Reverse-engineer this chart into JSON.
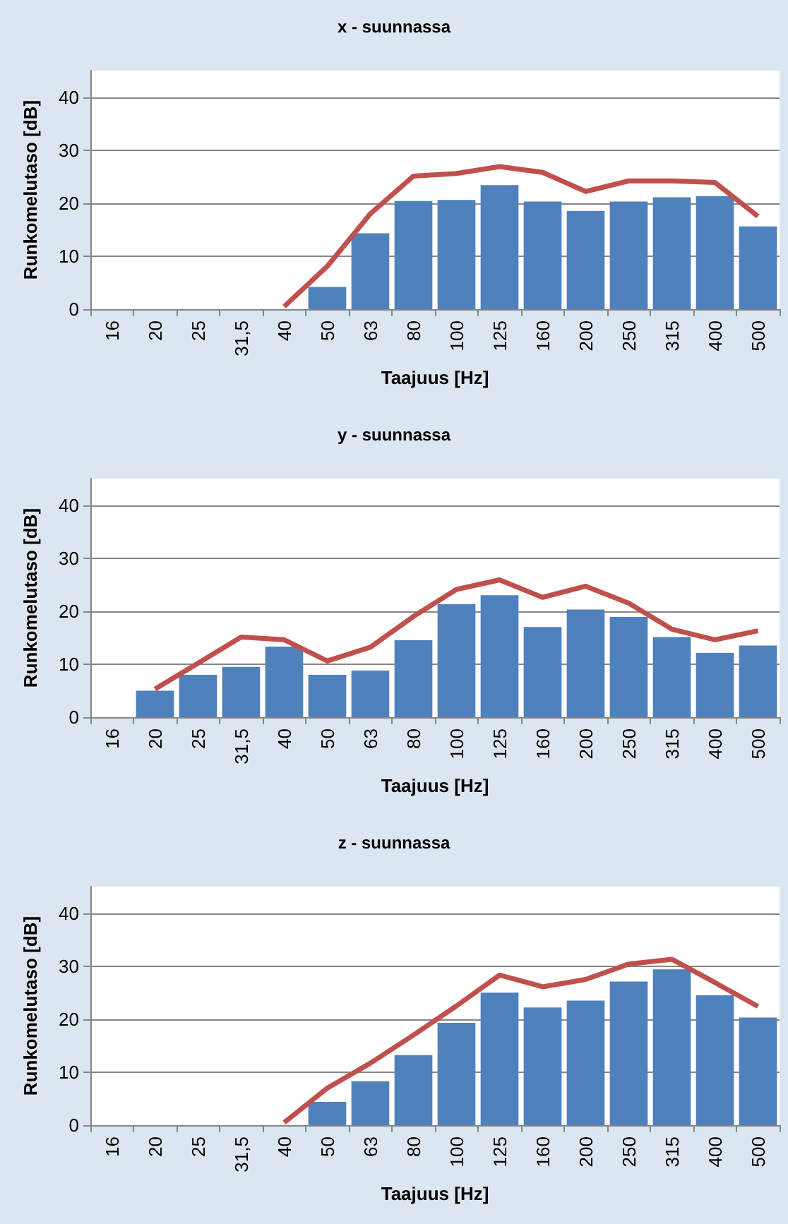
{
  "chart_data": [
    {
      "type": "bar",
      "title": "x - suunnassa",
      "xlabel": "Taajuus [Hz]",
      "ylabel": "Runkomelutaso [dB]",
      "categories": [
        "16",
        "20",
        "25",
        "31,5",
        "40",
        "50",
        "63",
        "80",
        "100",
        "125",
        "160",
        "200",
        "250",
        "315",
        "400",
        "500"
      ],
      "ylim": [
        0,
        45
      ],
      "yticks": [
        0,
        10,
        20,
        30,
        40
      ],
      "grid": "y",
      "marker": "none",
      "series": [
        {
          "color": "#4f81bd",
          "values": [
            0,
            0,
            0,
            0,
            0,
            4.2,
            14.3,
            20.4,
            20.6,
            23.4,
            20.3,
            18.5,
            20.3,
            21.1,
            21.3,
            15.6
          ]
        },
        {
          "type": "line",
          "color": "#c0504d",
          "values": [
            null,
            null,
            null,
            null,
            0.5,
            8.1,
            18,
            25.1,
            25.6,
            26.9,
            25.8,
            22.2,
            24.2,
            24.2,
            23.9,
            17.5
          ]
        }
      ]
    },
    {
      "type": "bar",
      "title": "y - suunnassa",
      "xlabel": "Taajuus [Hz]",
      "ylabel": "Runkomelutaso [dB]",
      "categories": [
        "16",
        "20",
        "25",
        "31,5",
        "40",
        "50",
        "63",
        "80",
        "100",
        "125",
        "160",
        "200",
        "250",
        "315",
        "400",
        "500"
      ],
      "ylim": [
        0,
        45
      ],
      "yticks": [
        0,
        10,
        20,
        30,
        40
      ],
      "grid": "y",
      "marker": "none",
      "series": [
        {
          "color": "#4f81bd",
          "values": [
            0,
            5,
            8,
            9.5,
            13.3,
            8,
            8.8,
            14.5,
            21.3,
            23,
            17,
            20.3,
            18.9,
            15.1,
            12.1,
            13.5
          ]
        },
        {
          "type": "line",
          "color": "#c0504d",
          "values": [
            null,
            5.3,
            10.2,
            15.1,
            14.6,
            10.6,
            13.2,
            19,
            24.1,
            25.9,
            22.6,
            24.7,
            21.5,
            16.6,
            14.6,
            16.3
          ]
        }
      ]
    },
    {
      "type": "bar",
      "title": "z - suunnassa",
      "xlabel": "Taajuus [Hz]",
      "ylabel": "Runkomelutaso [dB]",
      "categories": [
        "16",
        "20",
        "25",
        "31,5",
        "40",
        "50",
        "63",
        "80",
        "100",
        "125",
        "160",
        "200",
        "250",
        "315",
        "400",
        "500"
      ],
      "ylim": [
        0,
        45
      ],
      "yticks": [
        0,
        10,
        20,
        30,
        40
      ],
      "grid": "y",
      "marker": "none",
      "series": [
        {
          "color": "#4f81bd",
          "values": [
            0,
            0,
            0,
            0,
            0,
            4.4,
            8.3,
            13.2,
            19.3,
            25,
            22.2,
            23.5,
            27.1,
            29.4,
            24.5,
            20.3
          ]
        },
        {
          "type": "line",
          "color": "#c0504d",
          "values": [
            null,
            null,
            null,
            null,
            0.5,
            7,
            11.7,
            17,
            22.5,
            28.3,
            26.1,
            27.5,
            30.4,
            31.3,
            26.9,
            22.4
          ]
        }
      ]
    }
  ]
}
